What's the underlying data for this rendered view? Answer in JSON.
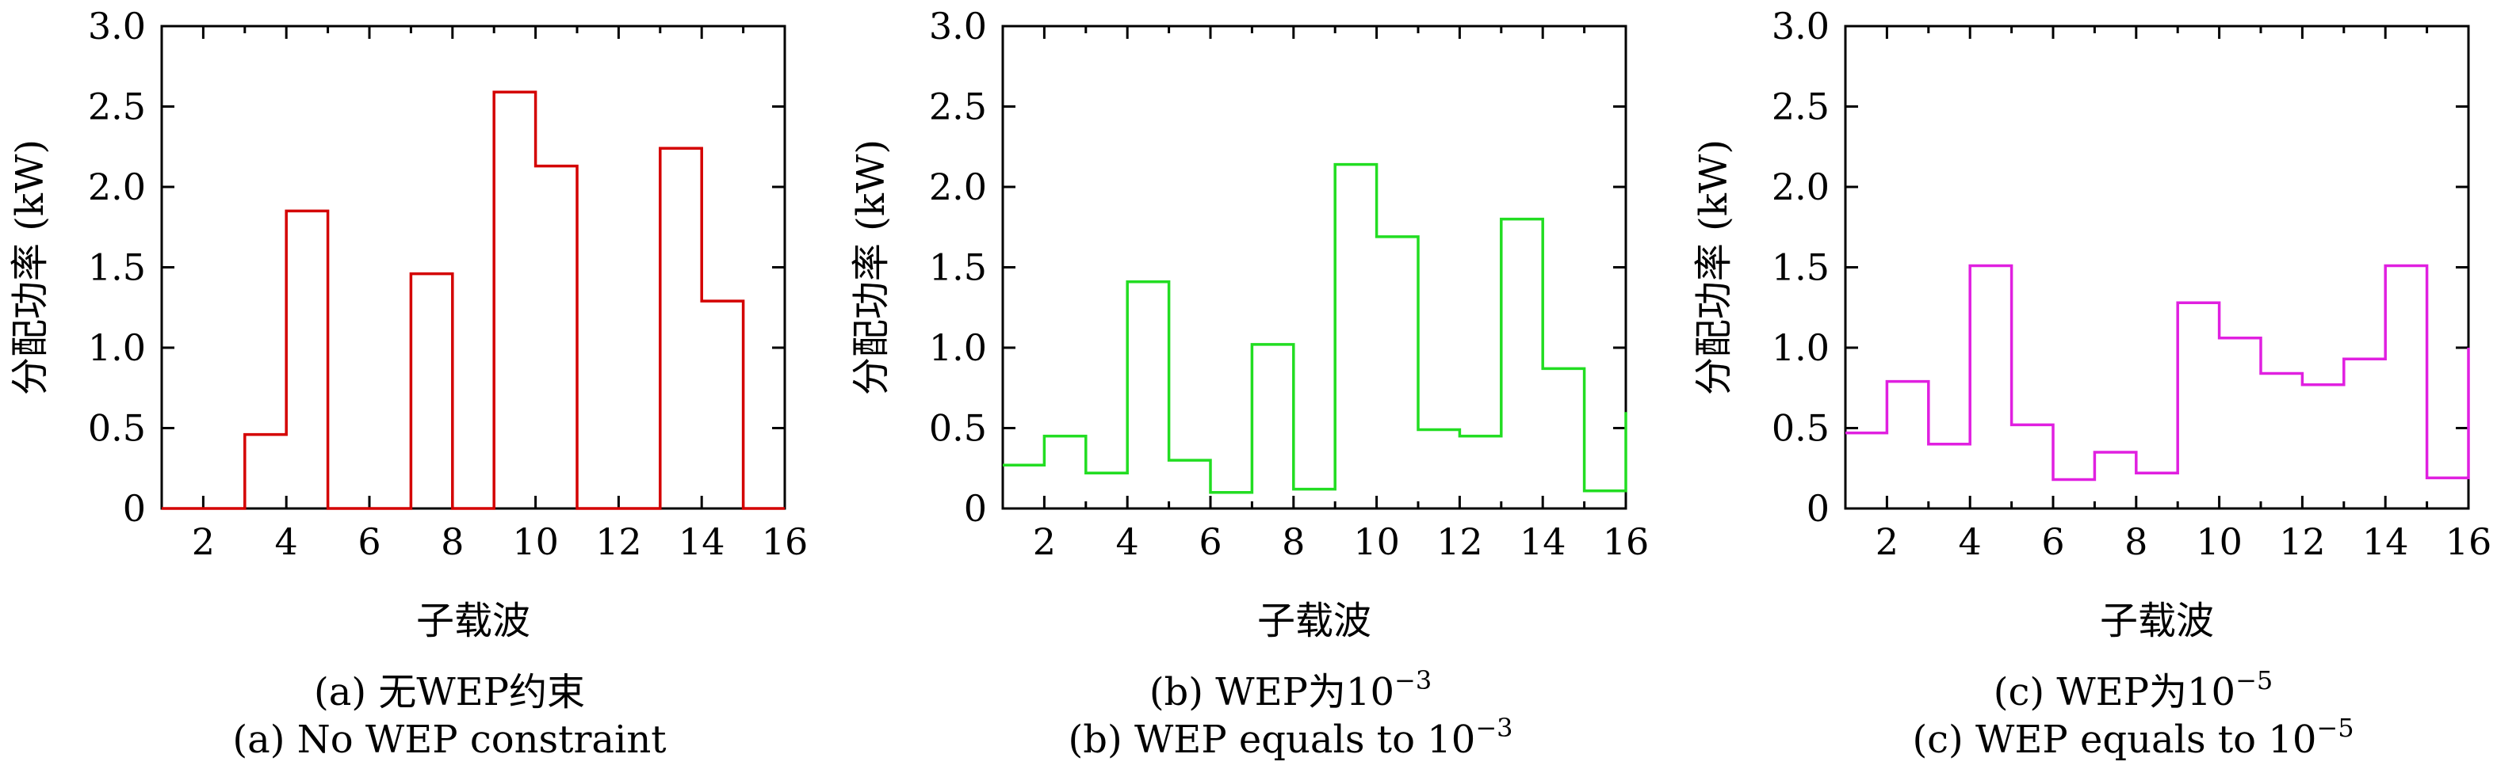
{
  "chart_data": [
    {
      "type": "line",
      "style": "step",
      "color": "#d40000",
      "xlabel": "子载波",
      "ylabel": "分配功率 (kW)",
      "xlim": [
        1,
        16
      ],
      "ylim": [
        0,
        3.0
      ],
      "xticks": [
        "2",
        "4",
        "6",
        "8",
        "10",
        "12",
        "14",
        "16"
      ],
      "yticks": [
        "0",
        "0.5",
        "1.0",
        "1.5",
        "2.0",
        "2.5",
        "3.0"
      ],
      "caption_cn": "(a) 无WEP约束",
      "caption_en": "(a) No WEP constraint",
      "x": [
        1,
        2,
        3,
        4,
        5,
        6,
        7,
        8,
        9,
        10,
        11,
        12,
        13,
        14,
        15,
        16
      ],
      "values": [
        0,
        0,
        0.46,
        1.85,
        0,
        0,
        1.46,
        0,
        2.59,
        2.13,
        0,
        0,
        2.24,
        1.29,
        0,
        0
      ]
    },
    {
      "type": "line",
      "style": "step",
      "color": "#22dd22",
      "xlabel": "子载波",
      "ylabel": "分配功率 (kW)",
      "xlim": [
        1,
        16
      ],
      "ylim": [
        0,
        3.0
      ],
      "xticks": [
        "2",
        "4",
        "6",
        "8",
        "10",
        "12",
        "14",
        "16"
      ],
      "yticks": [
        "0",
        "0.5",
        "1.0",
        "1.5",
        "2.0",
        "2.5",
        "3.0"
      ],
      "caption_cn": "(b) WEP为10",
      "caption_cn_sup": "−3",
      "caption_en": "(b) WEP equals to 10",
      "caption_en_sup": "−3",
      "x": [
        1,
        2,
        3,
        4,
        5,
        6,
        7,
        8,
        9,
        10,
        11,
        12,
        13,
        14,
        15,
        16
      ],
      "values": [
        0.27,
        0.45,
        0.22,
        1.41,
        0.3,
        0.1,
        1.02,
        0.12,
        2.14,
        1.69,
        0.49,
        0.45,
        1.8,
        0.87,
        0.11,
        0.6
      ]
    },
    {
      "type": "line",
      "style": "step",
      "color": "#e020e0",
      "xlabel": "子载波",
      "ylabel": "分配功率 (kW)",
      "xlim": [
        1,
        16
      ],
      "ylim": [
        0,
        3.0
      ],
      "xticks": [
        "2",
        "4",
        "6",
        "8",
        "10",
        "12",
        "14",
        "16"
      ],
      "yticks": [
        "0",
        "0.5",
        "1.0",
        "1.5",
        "2.0",
        "2.5",
        "3.0"
      ],
      "caption_cn": "(c) WEP为10",
      "caption_cn_sup": "−5",
      "caption_en": "(c) WEP equals to 10",
      "caption_en_sup": "−5",
      "x": [
        1,
        2,
        3,
        4,
        5,
        6,
        7,
        8,
        9,
        10,
        11,
        12,
        13,
        14,
        15,
        16
      ],
      "values": [
        0.47,
        0.79,
        0.4,
        1.51,
        0.52,
        0.18,
        0.35,
        0.22,
        1.28,
        1.06,
        0.84,
        0.77,
        0.93,
        1.51,
        0.19,
        1.0
      ]
    }
  ]
}
